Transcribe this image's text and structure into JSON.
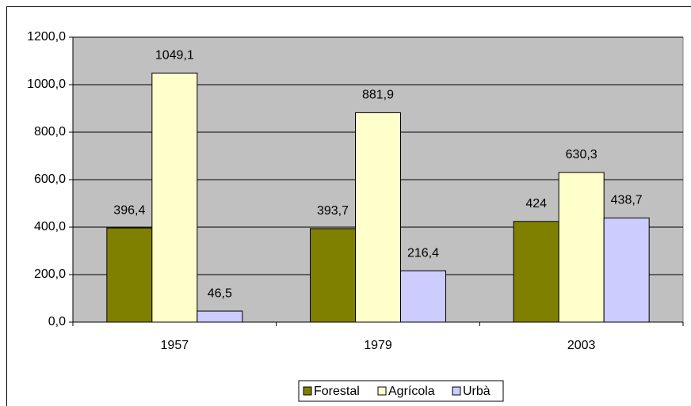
{
  "chart_data": {
    "type": "bar",
    "categories": [
      "1957",
      "1979",
      "2003"
    ],
    "series": [
      {
        "name": "Forestal",
        "color": "#808000",
        "values": [
          396.4,
          393.7,
          424
        ],
        "value_labels": [
          "396,4",
          "393,7",
          "424"
        ]
      },
      {
        "name": "Agrícola",
        "color": "#ffffcc",
        "values": [
          1049.1,
          881.9,
          630.3
        ],
        "value_labels": [
          "1049,1",
          "881,9",
          "630,3"
        ]
      },
      {
        "name": "Urbà",
        "color": "#ccccff",
        "values": [
          46.5,
          216.4,
          438.7
        ],
        "value_labels": [
          "46,5",
          "216,4",
          "438,7"
        ]
      }
    ],
    "ylim": [
      0,
      1200
    ],
    "yticks": [
      {
        "value": 0,
        "label": "0,0"
      },
      {
        "value": 200,
        "label": "200,0"
      },
      {
        "value": 400,
        "label": "400,0"
      },
      {
        "value": 600,
        "label": "600,0"
      },
      {
        "value": 800,
        "label": "800,0"
      },
      {
        "value": 1000,
        "label": "1000,0"
      },
      {
        "value": 1200,
        "label": "1200,0"
      }
    ],
    "grid": true,
    "legend": "bottom"
  }
}
